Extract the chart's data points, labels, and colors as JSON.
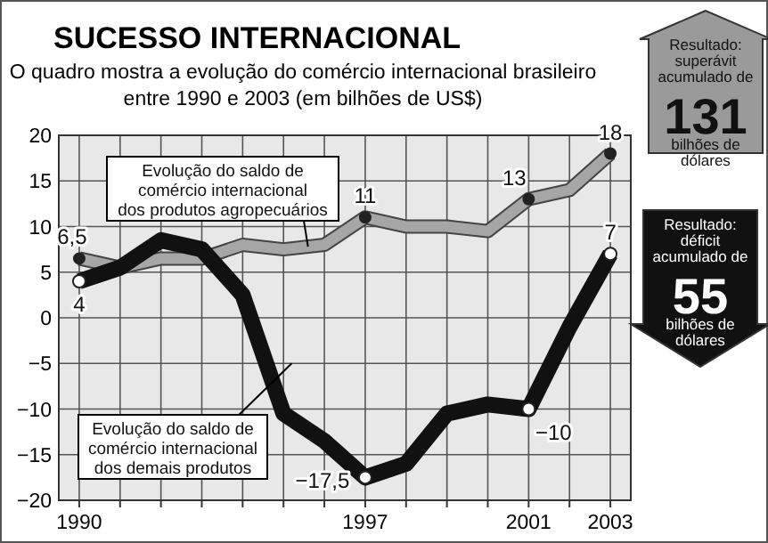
{
  "chart_data": {
    "type": "line",
    "title": "SUCESSO INTERNACIONAL",
    "subtitle": "O quadro mostra a evolução do comércio internacional brasileiro\nentre 1990 e 2003 (em bilhões de US$)",
    "x": [
      1990,
      1991,
      1992,
      1993,
      1994,
      1995,
      1996,
      1997,
      1998,
      1999,
      2000,
      2001,
      2002,
      2003
    ],
    "series": [
      {
        "name": "Evolução do saldo de\ncomércio internacional\ndos produtos agropecuários",
        "color": "#a6a6a6",
        "values": [
          6.5,
          5.5,
          6.5,
          6.5,
          8,
          7.5,
          8,
          11,
          10,
          10,
          9.5,
          13,
          14,
          18
        ],
        "value_labels": [
          "6,5",
          null,
          null,
          null,
          null,
          null,
          null,
          "11",
          null,
          null,
          null,
          "13",
          null,
          "18"
        ]
      },
      {
        "name": "Evolução do saldo de\ncomércio internacional\ndos demais produtos",
        "color": "#111111",
        "values": [
          4,
          5.5,
          8.5,
          7.5,
          2.5,
          -10.5,
          -13.5,
          -17.5,
          -16,
          -10.5,
          -9.5,
          -10,
          -1,
          7
        ],
        "value_labels": [
          "4",
          null,
          null,
          null,
          null,
          null,
          null,
          "−17,5",
          null,
          null,
          null,
          "−10",
          null,
          "7"
        ]
      }
    ],
    "xlim": [
      1989.5,
      2003.5
    ],
    "xticks": [
      1990,
      {
        "value": 1991,
        "label": null
      },
      {
        "value": 1992,
        "label": null
      },
      {
        "value": 1993,
        "label": null
      },
      {
        "value": 1994,
        "label": null
      },
      {
        "value": 1995,
        "label": null
      },
      {
        "value": 1996,
        "label": null
      },
      1997,
      {
        "value": 1998,
        "label": null
      },
      {
        "value": 1999,
        "label": null
      },
      {
        "value": 2000,
        "label": null
      },
      2001,
      {
        "value": 2002,
        "label": null
      },
      2003
    ],
    "ylim": [
      -20,
      20
    ],
    "yticks": [
      {
        "value": -20,
        "label": "−20"
      },
      {
        "value": -15,
        "label": "−15"
      },
      {
        "value": -10,
        "label": "−10"
      },
      {
        "value": -5,
        "label": "−5"
      },
      0,
      5,
      10,
      15,
      20
    ],
    "grid": true,
    "line_style": "solid",
    "annotations": [
      "Resultado:\nsuperávit\nacumulado de",
      "131",
      "bilhões de\ndólares",
      "Resultado:\ndéficit\nacumulado de",
      "55",
      "bilhões de\ndólares"
    ]
  }
}
